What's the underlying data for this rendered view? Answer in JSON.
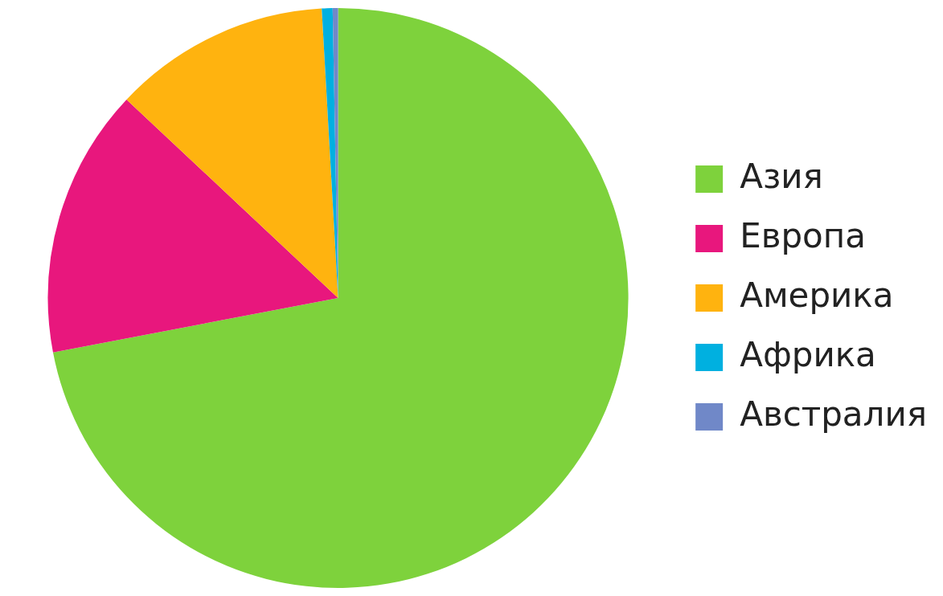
{
  "chart_data": {
    "type": "pie",
    "categories": [
      "Азия",
      "Европа",
      "Америка",
      "Африка",
      "Австралия"
    ],
    "values": [
      72.0,
      15.0,
      12.1,
      0.6,
      0.3
    ],
    "colors": [
      "#7ed23c",
      "#e8177d",
      "#ffb30f",
      "#00b0e0",
      "#7088c8"
    ],
    "legend": "right"
  }
}
